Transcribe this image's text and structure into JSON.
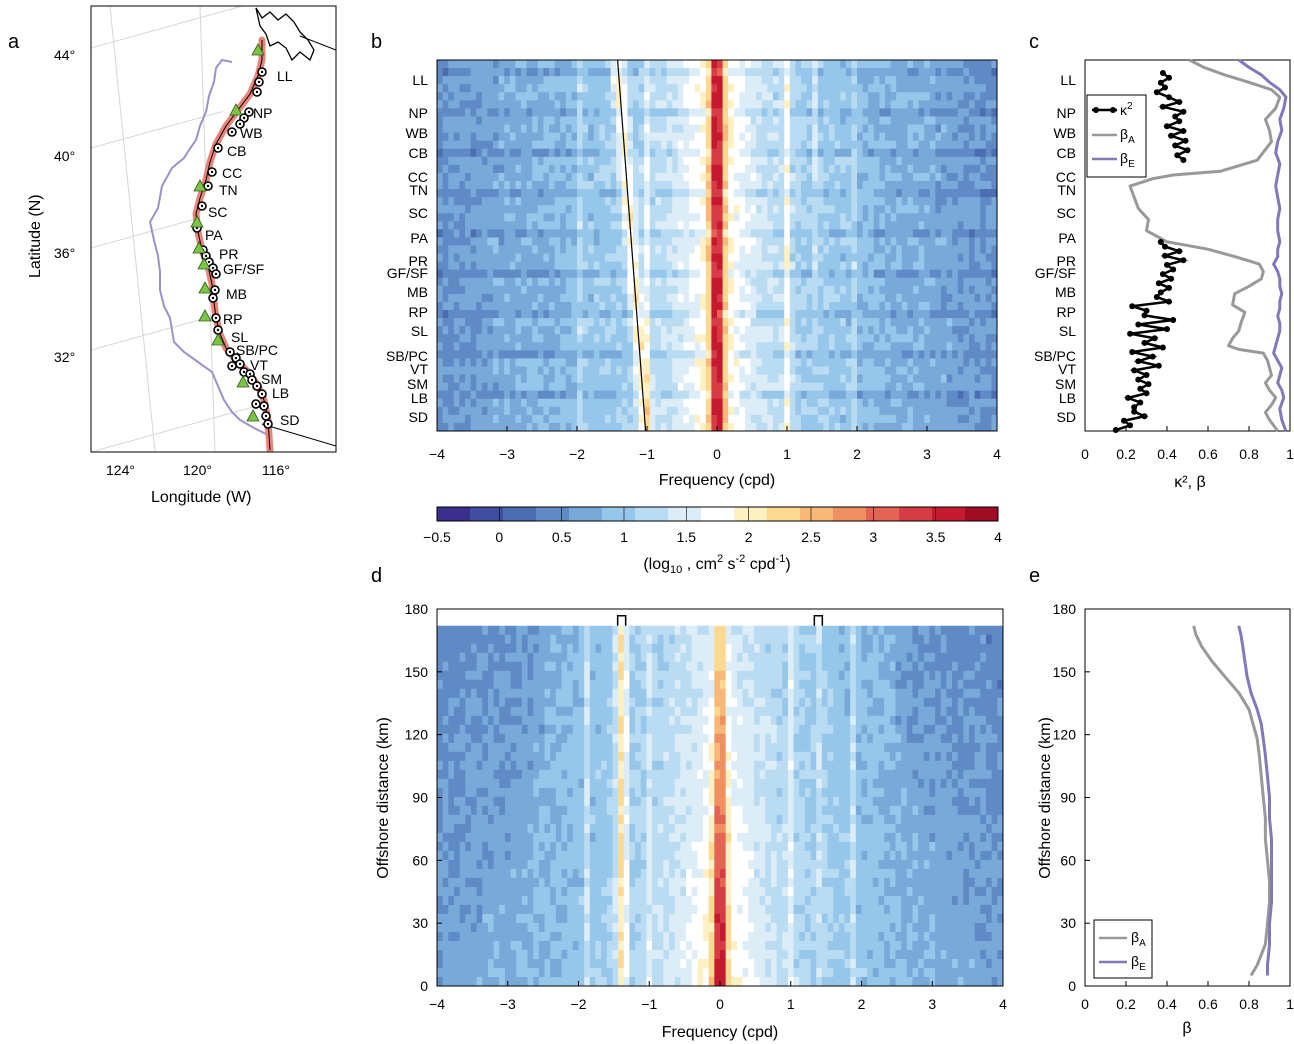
{
  "colors": {
    "coast_track": "#e8857a",
    "offshore_line": "#9a93c8",
    "station": "#000000",
    "hf_site": "#7cc447",
    "beta_a": "#999999",
    "beta_e": "#8577b8",
    "kappa": "#000000"
  },
  "panel_letters": {
    "a": "a",
    "b": "b",
    "c": "c",
    "d": "d",
    "e": "e"
  },
  "region_codes": [
    "LL",
    "NP",
    "WB",
    "CB",
    "CC",
    "TN",
    "SC",
    "PA",
    "PR",
    "GF/SF",
    "MB",
    "RP",
    "SL",
    "SB/PC",
    "VT",
    "SM",
    "LB",
    "SD"
  ],
  "chart_data": [
    {
      "panel": "a",
      "type": "map",
      "xlabel": "Longitude (W)",
      "ylabel": "Latitude (N)",
      "xticks": [
        "124°",
        "120°",
        "116°"
      ],
      "yticks": [
        "44°",
        "40°",
        "36°",
        "32°"
      ],
      "marker_legend": "none"
    },
    {
      "panel": "b",
      "type": "heatmap",
      "xlabel": "Frequency (cpd)",
      "xlim": [
        -4,
        4
      ],
      "xticks": [
        "−4",
        "−3",
        "−2",
        "−1",
        "0",
        "1",
        "2",
        "3",
        "4"
      ],
      "ylabels": [
        "LL",
        "NP",
        "WB",
        "CB",
        "CC",
        "TN",
        "SC",
        "PA",
        "PR",
        "GF/SF",
        "MB",
        "RP",
        "SL",
        "SB/PC",
        "VT",
        "SM",
        "LB",
        "SD"
      ],
      "inertial_line": {
        "lat_top": 44,
        "lat_bottom": 32,
        "x_top": -1.42,
        "x_bottom": -1.02
      }
    },
    {
      "panel": "colorbar",
      "type": "colorbar",
      "label_pre": "(log",
      "label_sub": "10",
      "label_mid": " , cm",
      "label_sup1": "2",
      "label_s": " s",
      "label_sup2": "-2",
      "label_cpd": " cpd",
      "label_sup3": "-1",
      "label_post": ")",
      "range": [
        -0.5,
        4
      ],
      "ticks": [
        "−0.5",
        "0",
        "0.5",
        "1",
        "1.5",
        "2",
        "2.5",
        "3",
        "3.5",
        "4"
      ],
      "colors": [
        "#3a2f8c",
        "#3f4ea0",
        "#4c6db2",
        "#5f8ac5",
        "#78a9d9",
        "#96c6ea",
        "#b9dcf2",
        "#dcedf7",
        "#ffffff",
        "#fdf1c4",
        "#fbd991",
        "#f7b878",
        "#ee9060",
        "#e36453",
        "#d63c45",
        "#c4192f",
        "#9e0b23"
      ]
    },
    {
      "panel": "c",
      "type": "line",
      "xlabel": "κ², β",
      "xlim": [
        0,
        1
      ],
      "xticks": [
        "0",
        "0.2",
        "0.4",
        "0.6",
        "0.8",
        "1"
      ],
      "ylabels": [
        "LL",
        "NP",
        "WB",
        "CB",
        "CC",
        "TN",
        "SC",
        "PA",
        "PR",
        "GF/SF",
        "MB",
        "RP",
        "SL",
        "SB/PC",
        "VT",
        "SM",
        "LB",
        "SD"
      ],
      "legend": [
        "κ",
        "2",
        "β",
        "A",
        "β",
        "E"
      ],
      "series": [
        {
          "name": "κ²",
          "x_norm": [
            0.38,
            0.41,
            0.37,
            0.39,
            0.35,
            0.41,
            0.46,
            0.38,
            0.48,
            0.44,
            0.46,
            0.4,
            0.48,
            0.42,
            0.49,
            0.44,
            0.5,
            0.45,
            0.48
          ],
          "y_frac": [
            0.02,
            0.05,
            0.08,
            0.11,
            0.15,
            0.19,
            0.22,
            0.25,
            0.28,
            0.31,
            0.34,
            0.37,
            0.4,
            0.43,
            0.46,
            0.49,
            0.52,
            0.55,
            0.58
          ]
        },
        {
          "name": "κ² (south)",
          "x_norm": [
            0.37,
            0.39,
            0.46,
            0.39,
            0.48,
            0.4,
            0.43,
            0.38,
            0.42,
            0.36,
            0.41,
            0.37,
            0.35,
            0.41,
            0.23,
            0.3,
            0.29,
            0.43,
            0.26,
            0.4,
            0.22,
            0.34,
            0.29,
            0.38,
            0.23,
            0.33,
            0.26,
            0.36,
            0.24,
            0.3,
            0.26,
            0.31,
            0.27,
            0.3,
            0.21,
            0.27,
            0.24,
            0.24,
            0.29,
            0.19,
            0.22,
            0.15
          ],
          "y_frac": [
            0.49,
            0.51,
            0.53,
            0.55,
            0.56,
            0.58,
            0.6,
            0.62,
            0.64,
            0.66,
            0.68,
            0.7,
            0.71,
            0.72,
            0.73,
            0.74,
            0.75,
            0.76,
            0.77,
            0.78,
            0.79,
            0.8,
            0.81,
            0.82,
            0.83,
            0.84,
            0.85,
            0.86,
            0.87,
            0.88,
            0.89,
            0.9,
            0.91,
            0.92,
            0.93,
            0.94,
            0.95,
            0.96,
            0.97,
            0.98,
            0.99,
            1.0
          ]
        }
      ],
      "beta_a": {
        "x": [
          0.51,
          0.58,
          0.68,
          0.8,
          0.91,
          0.95,
          0.93,
          0.88,
          0.9,
          0.91,
          0.84,
          0.66,
          0.43,
          0.33,
          0.22,
          0.24,
          0.26,
          0.31,
          0.3,
          0.4,
          0.6,
          0.73,
          0.85,
          0.87,
          0.86,
          0.8,
          0.73,
          0.72,
          0.78,
          0.76,
          0.75,
          0.72,
          0.7,
          0.75,
          0.87,
          0.89,
          0.9,
          0.91,
          0.88,
          0.9,
          0.93,
          0.91,
          0.88,
          0.9,
          0.94
        ],
        "y": [
          0.0,
          0.02,
          0.04,
          0.06,
          0.08,
          0.1,
          0.13,
          0.16,
          0.19,
          0.22,
          0.27,
          0.3,
          0.31,
          0.32,
          0.34,
          0.37,
          0.4,
          0.43,
          0.46,
          0.49,
          0.51,
          0.53,
          0.55,
          0.57,
          0.59,
          0.61,
          0.63,
          0.66,
          0.68,
          0.71,
          0.73,
          0.75,
          0.77,
          0.78,
          0.79,
          0.81,
          0.83,
          0.85,
          0.87,
          0.89,
          0.91,
          0.93,
          0.95,
          0.97,
          1.0
        ]
      },
      "beta_e": {
        "x": [
          0.75,
          0.8,
          0.86,
          0.9,
          0.95,
          0.98,
          0.97,
          0.95,
          0.96,
          0.94,
          0.93,
          0.95,
          0.94,
          0.93,
          0.94,
          0.95,
          0.94,
          0.94,
          0.95,
          0.94,
          0.94,
          0.92,
          0.94,
          0.95,
          0.95,
          0.96,
          0.95,
          0.95,
          0.94,
          0.95,
          0.95,
          0.94,
          0.93,
          0.92,
          0.94,
          0.96,
          0.95,
          0.94,
          0.96,
          0.97,
          0.95,
          0.96,
          0.98
        ],
        "y": [
          0.0,
          0.02,
          0.04,
          0.06,
          0.08,
          0.1,
          0.13,
          0.16,
          0.19,
          0.22,
          0.25,
          0.28,
          0.31,
          0.34,
          0.37,
          0.4,
          0.43,
          0.46,
          0.49,
          0.51,
          0.53,
          0.55,
          0.57,
          0.59,
          0.61,
          0.63,
          0.65,
          0.67,
          0.69,
          0.71,
          0.73,
          0.75,
          0.77,
          0.79,
          0.81,
          0.83,
          0.85,
          0.87,
          0.89,
          0.91,
          0.94,
          0.97,
          1.0
        ]
      }
    },
    {
      "panel": "d",
      "type": "heatmap",
      "xlabel": "Frequency (cpd)",
      "ylabel": "Offshore distance (km)",
      "xlim": [
        -4,
        4
      ],
      "ylim": [
        0,
        180
      ],
      "xticks": [
        "−4",
        "−3",
        "−2",
        "−1",
        "0",
        "1",
        "2",
        "3",
        "4"
      ],
      "yticks": [
        "0",
        "30",
        "60",
        "90",
        "120",
        "150",
        "180"
      ],
      "marker_freqs": [
        -1.39,
        1.39
      ]
    },
    {
      "panel": "e",
      "type": "line",
      "xlabel": "β",
      "ylabel": "Offshore distance (km)",
      "xlim": [
        0,
        1
      ],
      "ylim": [
        0,
        180
      ],
      "xticks": [
        "0",
        "0.2",
        "0.4",
        "0.6",
        "0.8",
        "1"
      ],
      "yticks": [
        "0",
        "30",
        "60",
        "90",
        "120",
        "150",
        "180"
      ],
      "legend": [
        "β",
        "A",
        "β",
        "E"
      ],
      "series": [
        {
          "key": "A",
          "x": [
            0.81,
            0.84,
            0.88,
            0.89,
            0.9,
            0.9,
            0.89,
            0.88,
            0.88,
            0.87,
            0.86,
            0.85,
            0.84,
            0.82,
            0.8,
            0.75,
            0.68,
            0.62,
            0.57,
            0.54,
            0.53
          ],
          "y": [
            5,
            10,
            20,
            30,
            40,
            50,
            60,
            70,
            80,
            90,
            100,
            110,
            118,
            125,
            132,
            140,
            148,
            155,
            162,
            168,
            172
          ]
        },
        {
          "key": "E",
          "x": [
            0.89,
            0.89,
            0.9,
            0.9,
            0.91,
            0.91,
            0.91,
            0.91,
            0.9,
            0.9,
            0.89,
            0.88,
            0.87,
            0.86,
            0.84,
            0.81,
            0.79,
            0.78,
            0.77,
            0.76,
            0.75
          ],
          "y": [
            5,
            10,
            20,
            30,
            40,
            50,
            60,
            70,
            80,
            90,
            100,
            110,
            118,
            125,
            132,
            140,
            148,
            155,
            162,
            168,
            172
          ]
        }
      ]
    }
  ]
}
